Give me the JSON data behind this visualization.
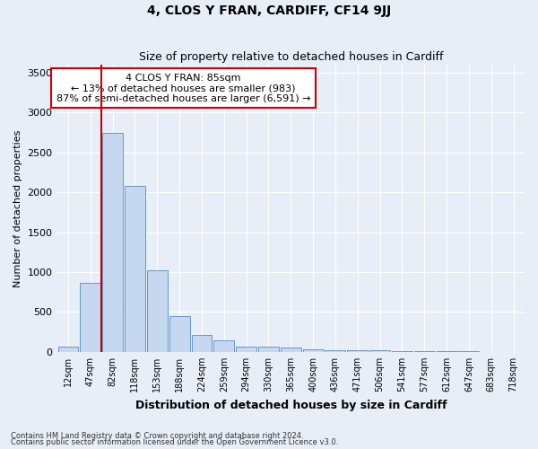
{
  "title": "4, CLOS Y FRAN, CARDIFF, CF14 9JJ",
  "subtitle": "Size of property relative to detached houses in Cardiff",
  "xlabel": "Distribution of detached houses by size in Cardiff",
  "ylabel": "Number of detached properties",
  "footnote1": "Contains HM Land Registry data © Crown copyright and database right 2024.",
  "footnote2": "Contains public sector information licensed under the Open Government Licence v3.0.",
  "categories": [
    "12sqm",
    "47sqm",
    "82sqm",
    "118sqm",
    "153sqm",
    "188sqm",
    "224sqm",
    "259sqm",
    "294sqm",
    "330sqm",
    "365sqm",
    "400sqm",
    "436sqm",
    "471sqm",
    "506sqm",
    "541sqm",
    "577sqm",
    "612sqm",
    "647sqm",
    "683sqm",
    "718sqm"
  ],
  "values": [
    60,
    860,
    2750,
    2080,
    1020,
    450,
    210,
    145,
    70,
    60,
    50,
    35,
    25,
    20,
    15,
    10,
    8,
    5,
    4,
    3,
    2
  ],
  "bar_color": "#c5d8f0",
  "bar_edge_color": "#6699cc",
  "vline_x": 1.5,
  "vline_color": "#cc0000",
  "annotation_text": "4 CLOS Y FRAN: 85sqm\n← 13% of detached houses are smaller (983)\n87% of semi-detached houses are larger (6,591) →",
  "annotation_box_facecolor": "#ffffff",
  "annotation_box_edgecolor": "#cc0000",
  "ylim": [
    0,
    3600
  ],
  "yticks": [
    0,
    500,
    1000,
    1500,
    2000,
    2500,
    3000,
    3500
  ],
  "background_color": "#e8eef8",
  "grid_color": "#ffffff",
  "title_fontsize": 10,
  "subtitle_fontsize": 9,
  "ylabel_fontsize": 8,
  "xlabel_fontsize": 9,
  "ytick_fontsize": 8,
  "xtick_fontsize": 7,
  "annotation_fontsize": 8,
  "footnote_fontsize": 6
}
